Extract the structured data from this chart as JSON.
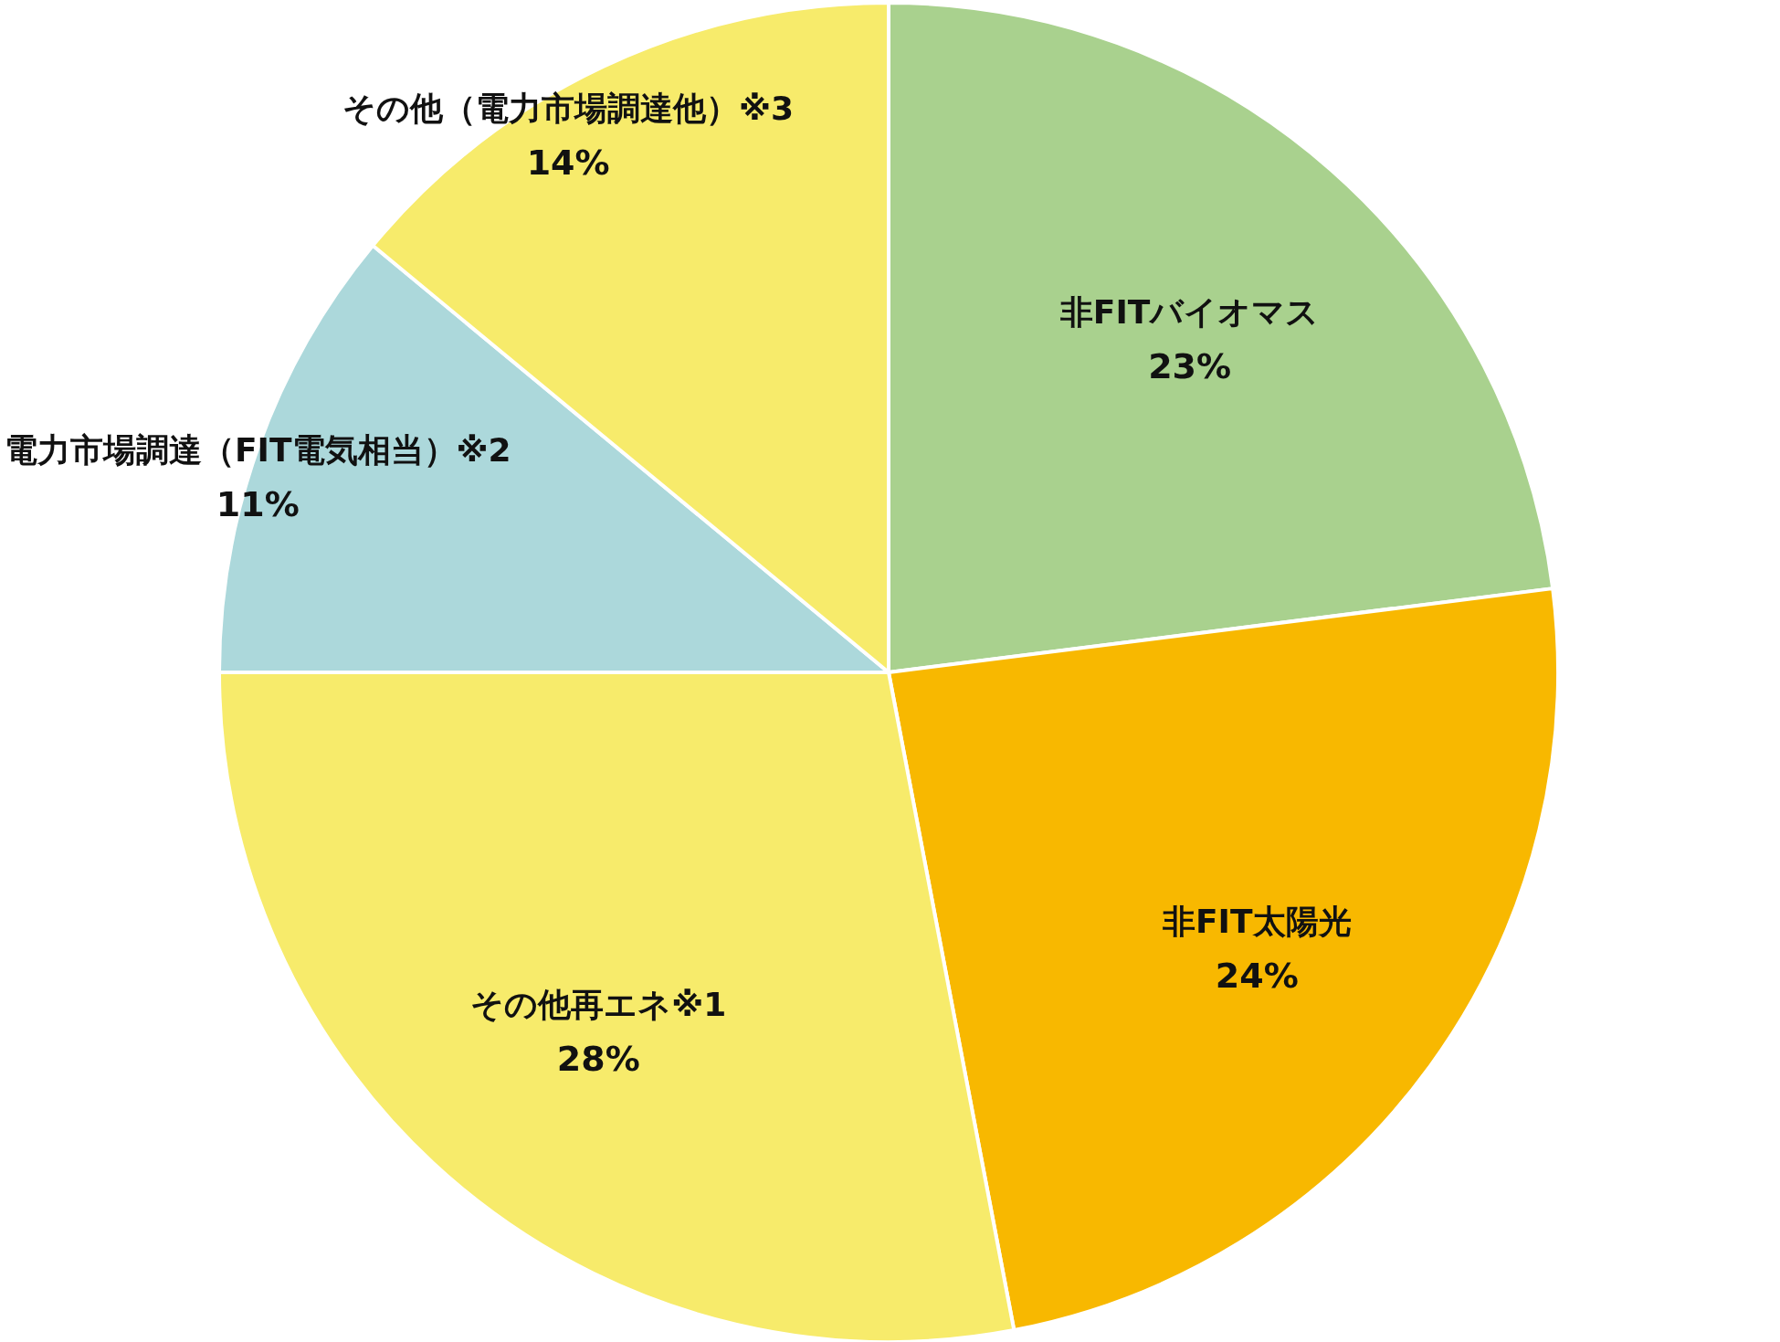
{
  "chart_data": {
    "type": "pie",
    "categories": [
      "非FITバイオマス",
      "非FIT太陽光",
      "その他再エネ※1",
      "電力市場調達（FIT電気相当）※2",
      "その他（電力市場調達他）※3"
    ],
    "values": [
      23,
      24,
      28,
      11,
      14
    ],
    "colors": [
      "#a9d18e",
      "#f8b800",
      "#f7eb6b",
      "#acd8db",
      "#f7eb6b"
    ],
    "value_labels": [
      "23%",
      "24%",
      "28%",
      "11%",
      "14%"
    ]
  }
}
